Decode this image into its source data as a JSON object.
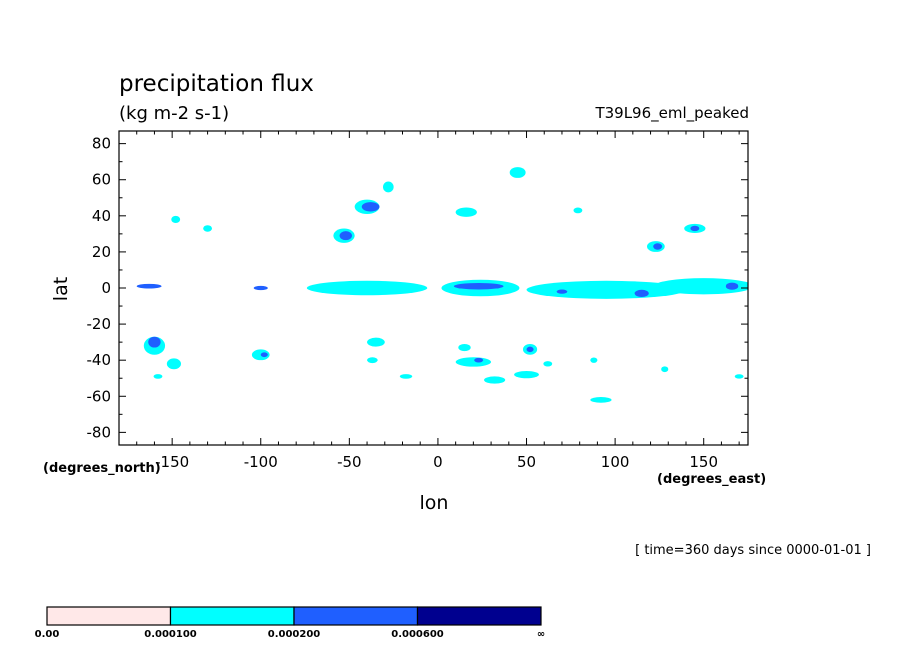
{
  "chart_data": {
    "type": "contour",
    "title": "precipitation flux",
    "units": "(kg m-2 s-1)",
    "run_label": "T39L96_eml_peaked",
    "xlabel": "lon",
    "ylabel": "lat",
    "x_units": "(degrees_east)",
    "y_units": "(degrees_north)",
    "xlim": [
      -180,
      175
    ],
    "ylim": [
      -87,
      87
    ],
    "x_ticks": [
      "-150",
      "-100",
      "-50",
      "0",
      "50",
      "100",
      "150"
    ],
    "y_ticks": [
      "80",
      "60",
      "40",
      "20",
      "0",
      "-20",
      "-40",
      "-60",
      "-80"
    ],
    "time_label": "[ time=360 days since 0000-01-01 ]",
    "colorbar": {
      "levels": [
        {
          "label": "0.00",
          "color": "#ffe8e8"
        },
        {
          "label": "0.000100",
          "color": "#00ffff"
        },
        {
          "label": "0.000200",
          "color": "#1f5fff"
        },
        {
          "label": "0.000600",
          "color": "#00008f"
        },
        {
          "label": "∞",
          "color": ""
        }
      ]
    },
    "regions": [
      {
        "level": 1,
        "lon": -40,
        "lat": 45,
        "rx": 7,
        "ry": 4
      },
      {
        "level": 2,
        "lon": -38,
        "lat": 45,
        "rx": 5,
        "ry": 2.6
      },
      {
        "level": 1,
        "lon": -53,
        "lat": 29,
        "rx": 6,
        "ry": 4
      },
      {
        "level": 2,
        "lon": -52,
        "lat": 29,
        "rx": 3.5,
        "ry": 2.5
      },
      {
        "level": 1,
        "lon": -28,
        "lat": 56,
        "rx": 3,
        "ry": 3
      },
      {
        "level": 1,
        "lon": -148,
        "lat": 38,
        "rx": 2.5,
        "ry": 2
      },
      {
        "level": 1,
        "lon": -130,
        "lat": 33,
        "rx": 2.5,
        "ry": 1.8
      },
      {
        "level": 1,
        "lon": 45,
        "lat": 64,
        "rx": 4.5,
        "ry": 3
      },
      {
        "level": 1,
        "lon": 16,
        "lat": 42,
        "rx": 6,
        "ry": 2.6
      },
      {
        "level": 1,
        "lon": 79,
        "lat": 43,
        "rx": 2.5,
        "ry": 1.6
      },
      {
        "level": 1,
        "lon": 123,
        "lat": 23,
        "rx": 5,
        "ry": 3
      },
      {
        "level": 2,
        "lon": 124,
        "lat": 23,
        "rx": 2.5,
        "ry": 1.8
      },
      {
        "level": 1,
        "lon": 145,
        "lat": 33,
        "rx": 6,
        "ry": 2.5
      },
      {
        "level": 2,
        "lon": 145,
        "lat": 33,
        "rx": 2.5,
        "ry": 1.5
      },
      {
        "level": 1,
        "lon": -40,
        "lat": 0,
        "rx": 34,
        "ry": 4
      },
      {
        "level": 1,
        "lon": 24,
        "lat": 0,
        "rx": 22,
        "ry": 4.6
      },
      {
        "level": 1,
        "lon": 95,
        "lat": -1,
        "rx": 45,
        "ry": 5
      },
      {
        "level": 1,
        "lon": 150,
        "lat": 1,
        "rx": 28,
        "ry": 4.5
      },
      {
        "level": 2,
        "lon": -163,
        "lat": 1,
        "rx": 7,
        "ry": 1.3
      },
      {
        "level": 2,
        "lon": -100,
        "lat": 0,
        "rx": 4,
        "ry": 1.2
      },
      {
        "level": 2,
        "lon": 23,
        "lat": 1,
        "rx": 14,
        "ry": 1.8
      },
      {
        "level": 2,
        "lon": 70,
        "lat": -2,
        "rx": 3,
        "ry": 1.2
      },
      {
        "level": 2,
        "lon": 115,
        "lat": -3,
        "rx": 4,
        "ry": 2
      },
      {
        "level": 2,
        "lon": 166,
        "lat": 1,
        "rx": 3.5,
        "ry": 2
      },
      {
        "level": 1,
        "lon": -160,
        "lat": -32,
        "rx": 6,
        "ry": 5
      },
      {
        "level": 2,
        "lon": -160,
        "lat": -30,
        "rx": 3.5,
        "ry": 3
      },
      {
        "level": 1,
        "lon": -149,
        "lat": -42,
        "rx": 4,
        "ry": 3
      },
      {
        "level": 1,
        "lon": -158,
        "lat": -49,
        "rx": 2.5,
        "ry": 1.3
      },
      {
        "level": 1,
        "lon": -100,
        "lat": -37,
        "rx": 5,
        "ry": 3
      },
      {
        "level": 2,
        "lon": -98,
        "lat": -37,
        "rx": 2,
        "ry": 1.3
      },
      {
        "level": 1,
        "lon": -35,
        "lat": -30,
        "rx": 5,
        "ry": 2.5
      },
      {
        "level": 1,
        "lon": -37,
        "lat": -40,
        "rx": 3,
        "ry": 1.6
      },
      {
        "level": 1,
        "lon": -18,
        "lat": -49,
        "rx": 3.5,
        "ry": 1.3
      },
      {
        "level": 1,
        "lon": 15,
        "lat": -33,
        "rx": 3.5,
        "ry": 2
      },
      {
        "level": 1,
        "lon": 20,
        "lat": -41,
        "rx": 10,
        "ry": 2.6
      },
      {
        "level": 2,
        "lon": 23,
        "lat": -40,
        "rx": 2.5,
        "ry": 1.3
      },
      {
        "level": 1,
        "lon": 32,
        "lat": -51,
        "rx": 6,
        "ry": 2
      },
      {
        "level": 1,
        "lon": 52,
        "lat": -34,
        "rx": 4,
        "ry": 3
      },
      {
        "level": 2,
        "lon": 52,
        "lat": -34,
        "rx": 2,
        "ry": 1.5
      },
      {
        "level": 1,
        "lon": 50,
        "lat": -48,
        "rx": 7,
        "ry": 2
      },
      {
        "level": 1,
        "lon": 62,
        "lat": -42,
        "rx": 2.5,
        "ry": 1.5
      },
      {
        "level": 1,
        "lon": 88,
        "lat": -40,
        "rx": 2,
        "ry": 1.5
      },
      {
        "level": 1,
        "lon": 92,
        "lat": -62,
        "rx": 6,
        "ry": 1.6
      },
      {
        "level": 1,
        "lon": 128,
        "lat": -45,
        "rx": 2,
        "ry": 1.6
      },
      {
        "level": 1,
        "lon": 170,
        "lat": -49,
        "rx": 2.5,
        "ry": 1.2
      }
    ]
  }
}
